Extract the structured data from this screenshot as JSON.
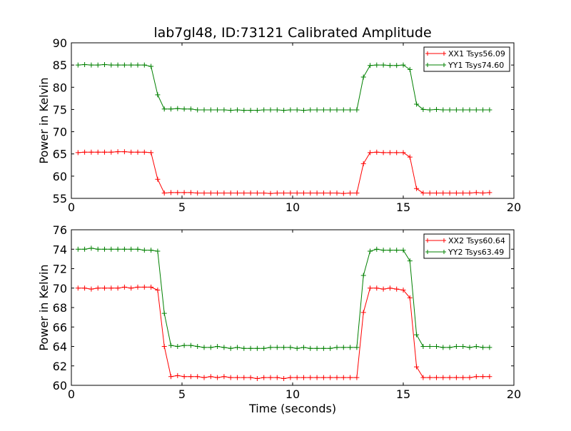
{
  "chart_data": [
    {
      "type": "line",
      "title": "lab7gl48, ID:73121 Calibrated Amplitude",
      "xlabel": "",
      "ylabel": "Power in Kelvin",
      "xlim": [
        0,
        20
      ],
      "ylim": [
        55,
        90
      ],
      "xticks": [
        0,
        5,
        10,
        15,
        20
      ],
      "yticks": [
        55,
        60,
        65,
        70,
        75,
        80,
        85,
        90
      ],
      "grid": false,
      "legend_position": "top-right",
      "series": [
        {
          "name": "XX1 Tsys56.09",
          "color": "#ff0000",
          "marker": "plus",
          "x": [
            0.3,
            0.6,
            0.9,
            1.2,
            1.5,
            1.8,
            2.1,
            2.4,
            2.7,
            3.0,
            3.3,
            3.6,
            3.9,
            4.2,
            4.5,
            4.8,
            5.1,
            5.4,
            5.7,
            6.0,
            6.3,
            6.6,
            6.9,
            7.2,
            7.5,
            7.8,
            8.1,
            8.4,
            8.7,
            9.0,
            9.3,
            9.6,
            9.9,
            10.2,
            10.5,
            10.8,
            11.1,
            11.4,
            11.7,
            12.0,
            12.3,
            12.6,
            12.9,
            13.2,
            13.5,
            13.8,
            14.1,
            14.4,
            14.7,
            15.0,
            15.3,
            15.6,
            15.9,
            16.2,
            16.5,
            16.8,
            17.1,
            17.4,
            17.7,
            18.0,
            18.3,
            18.6,
            18.9
          ],
          "y": [
            65.3,
            65.4,
            65.4,
            65.4,
            65.4,
            65.4,
            65.5,
            65.5,
            65.4,
            65.4,
            65.4,
            65.3,
            59.3,
            56.2,
            56.3,
            56.3,
            56.3,
            56.3,
            56.2,
            56.2,
            56.2,
            56.2,
            56.2,
            56.2,
            56.2,
            56.2,
            56.2,
            56.2,
            56.2,
            56.1,
            56.2,
            56.2,
            56.2,
            56.2,
            56.2,
            56.2,
            56.2,
            56.2,
            56.2,
            56.2,
            56.1,
            56.2,
            56.2,
            62.8,
            65.3,
            65.4,
            65.3,
            65.3,
            65.3,
            65.3,
            64.3,
            57.2,
            56.2,
            56.2,
            56.2,
            56.2,
            56.2,
            56.2,
            56.2,
            56.2,
            56.3,
            56.2,
            56.3
          ]
        },
        {
          "name": "YY1 Tsys74.60",
          "color": "#008000",
          "marker": "plus",
          "x": [
            0.3,
            0.6,
            0.9,
            1.2,
            1.5,
            1.8,
            2.1,
            2.4,
            2.7,
            3.0,
            3.3,
            3.6,
            3.9,
            4.2,
            4.5,
            4.8,
            5.1,
            5.4,
            5.7,
            6.0,
            6.3,
            6.6,
            6.9,
            7.2,
            7.5,
            7.8,
            8.1,
            8.4,
            8.7,
            9.0,
            9.3,
            9.6,
            9.9,
            10.2,
            10.5,
            10.8,
            11.1,
            11.4,
            11.7,
            12.0,
            12.3,
            12.6,
            12.9,
            13.2,
            13.5,
            13.8,
            14.1,
            14.4,
            14.7,
            15.0,
            15.3,
            15.6,
            15.9,
            16.2,
            16.5,
            16.8,
            17.1,
            17.4,
            17.7,
            18.0,
            18.3,
            18.6,
            18.9
          ],
          "y": [
            85.0,
            85.1,
            85.0,
            85.0,
            85.1,
            85.0,
            85.0,
            85.0,
            85.0,
            85.0,
            85.0,
            84.7,
            78.3,
            75.1,
            75.1,
            75.2,
            75.1,
            75.1,
            74.9,
            74.9,
            74.9,
            74.9,
            74.9,
            74.8,
            74.9,
            74.8,
            74.8,
            74.8,
            74.9,
            74.9,
            74.9,
            74.8,
            74.9,
            74.9,
            74.8,
            74.9,
            74.9,
            74.9,
            74.9,
            74.9,
            74.9,
            74.9,
            74.9,
            82.3,
            84.9,
            85.0,
            85.0,
            84.9,
            84.9,
            85.0,
            84.0,
            76.2,
            75.0,
            74.9,
            75.0,
            74.9,
            74.9,
            74.9,
            74.9,
            74.9,
            74.9,
            74.9,
            74.9
          ]
        }
      ]
    },
    {
      "type": "line",
      "title": "",
      "xlabel": "Time (seconds)",
      "ylabel": "Power in Kelvin",
      "xlim": [
        0,
        20
      ],
      "ylim": [
        60,
        76
      ],
      "xticks": [
        0,
        5,
        10,
        15,
        20
      ],
      "yticks": [
        60,
        62,
        64,
        66,
        68,
        70,
        72,
        74,
        76
      ],
      "grid": false,
      "legend_position": "top-right",
      "series": [
        {
          "name": "XX2 Tsys60.64",
          "color": "#ff0000",
          "marker": "plus",
          "x": [
            0.3,
            0.6,
            0.9,
            1.2,
            1.5,
            1.8,
            2.1,
            2.4,
            2.7,
            3.0,
            3.3,
            3.6,
            3.9,
            4.2,
            4.5,
            4.8,
            5.1,
            5.4,
            5.7,
            6.0,
            6.3,
            6.6,
            6.9,
            7.2,
            7.5,
            7.8,
            8.1,
            8.4,
            8.7,
            9.0,
            9.3,
            9.6,
            9.9,
            10.2,
            10.5,
            10.8,
            11.1,
            11.4,
            11.7,
            12.0,
            12.3,
            12.6,
            12.9,
            13.2,
            13.5,
            13.8,
            14.1,
            14.4,
            14.7,
            15.0,
            15.3,
            15.6,
            15.9,
            16.2,
            16.5,
            16.8,
            17.1,
            17.4,
            17.7,
            18.0,
            18.3,
            18.6,
            18.9
          ],
          "y": [
            70.0,
            70.0,
            69.9,
            70.0,
            70.0,
            70.0,
            70.0,
            70.1,
            70.0,
            70.1,
            70.1,
            70.1,
            69.8,
            64.0,
            60.9,
            61.0,
            60.9,
            60.9,
            60.9,
            60.8,
            60.9,
            60.8,
            60.9,
            60.8,
            60.8,
            60.8,
            60.8,
            60.7,
            60.8,
            60.8,
            60.8,
            60.7,
            60.8,
            60.8,
            60.8,
            60.8,
            60.8,
            60.8,
            60.8,
            60.8,
            60.8,
            60.8,
            60.8,
            67.5,
            70.0,
            70.0,
            69.9,
            70.0,
            69.9,
            69.8,
            69.0,
            61.9,
            60.8,
            60.8,
            60.8,
            60.8,
            60.8,
            60.8,
            60.8,
            60.8,
            60.9,
            60.9,
            60.9
          ]
        },
        {
          "name": "YY2 Tsys63.49",
          "color": "#008000",
          "marker": "plus",
          "x": [
            0.3,
            0.6,
            0.9,
            1.2,
            1.5,
            1.8,
            2.1,
            2.4,
            2.7,
            3.0,
            3.3,
            3.6,
            3.9,
            4.2,
            4.5,
            4.8,
            5.1,
            5.4,
            5.7,
            6.0,
            6.3,
            6.6,
            6.9,
            7.2,
            7.5,
            7.8,
            8.1,
            8.4,
            8.7,
            9.0,
            9.3,
            9.6,
            9.9,
            10.2,
            10.5,
            10.8,
            11.1,
            11.4,
            11.7,
            12.0,
            12.3,
            12.6,
            12.9,
            13.2,
            13.5,
            13.8,
            14.1,
            14.4,
            14.7,
            15.0,
            15.3,
            15.6,
            15.9,
            16.2,
            16.5,
            16.8,
            17.1,
            17.4,
            17.7,
            18.0,
            18.3,
            18.6,
            18.9
          ],
          "y": [
            74.0,
            74.0,
            74.1,
            74.0,
            74.0,
            74.0,
            74.0,
            74.0,
            74.0,
            74.0,
            73.9,
            73.9,
            73.8,
            67.4,
            64.1,
            64.0,
            64.1,
            64.1,
            64.0,
            63.9,
            63.9,
            64.0,
            63.9,
            63.8,
            63.9,
            63.8,
            63.8,
            63.8,
            63.8,
            63.9,
            63.9,
            63.9,
            63.9,
            63.8,
            63.9,
            63.8,
            63.8,
            63.8,
            63.8,
            63.9,
            63.9,
            63.9,
            63.9,
            71.3,
            73.8,
            74.0,
            73.9,
            73.9,
            73.9,
            73.9,
            72.8,
            65.2,
            64.0,
            64.0,
            64.0,
            63.9,
            63.9,
            64.0,
            64.0,
            63.9,
            64.0,
            63.9,
            63.9
          ]
        }
      ]
    }
  ]
}
